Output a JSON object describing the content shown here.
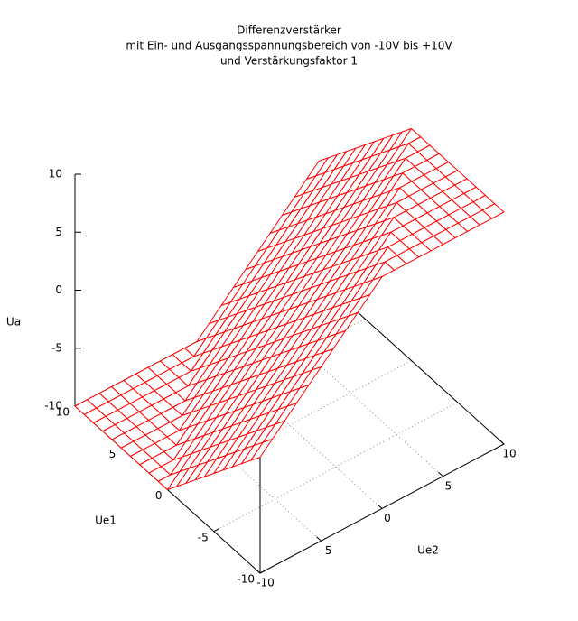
{
  "chart_data": {
    "type": "surface",
    "title": [
      "Differenzverstärker",
      "mit Ein- und Ausgangsspannungsbereich von -10V bis +10V",
      "und Verstärkungsfaktor 1"
    ],
    "xlabel": "Ue1",
    "ylabel": "Ue2",
    "zlabel": "Ua",
    "color": "#ff0000",
    "grid": true,
    "xlim": [
      -10,
      10
    ],
    "ylim": [
      -10,
      10
    ],
    "zlim": [
      -10,
      10
    ],
    "xticks": [
      -10,
      -5,
      0,
      5,
      10
    ],
    "yticks": [
      -10,
      -5,
      0,
      5,
      10
    ],
    "zticks": [
      -10,
      -5,
      0,
      5,
      10
    ],
    "x": [
      -10,
      -9,
      -8,
      -7,
      -6,
      -5,
      -4,
      -3,
      -2,
      -1,
      0,
      1,
      2,
      3,
      4,
      5,
      6,
      7,
      8,
      9,
      10
    ],
    "y": [
      -10,
      -9,
      -8,
      -7,
      -6,
      -5,
      -4,
      -3,
      -2,
      -1,
      0,
      1,
      2,
      3,
      4,
      5,
      6,
      7,
      8,
      9,
      10
    ],
    "z": [
      [
        0,
        1,
        2,
        3,
        4,
        5,
        6,
        7,
        8,
        9,
        10,
        10,
        10,
        10,
        10,
        10,
        10,
        10,
        10,
        10,
        10
      ],
      [
        -1,
        0,
        1,
        2,
        3,
        4,
        5,
        6,
        7,
        8,
        9,
        10,
        10,
        10,
        10,
        10,
        10,
        10,
        10,
        10,
        10
      ],
      [
        -2,
        -1,
        0,
        1,
        2,
        3,
        4,
        5,
        6,
        7,
        8,
        9,
        10,
        10,
        10,
        10,
        10,
        10,
        10,
        10,
        10
      ],
      [
        -3,
        -2,
        -1,
        0,
        1,
        2,
        3,
        4,
        5,
        6,
        7,
        8,
        9,
        10,
        10,
        10,
        10,
        10,
        10,
        10,
        10
      ],
      [
        -4,
        -3,
        -2,
        -1,
        0,
        1,
        2,
        3,
        4,
        5,
        6,
        7,
        8,
        9,
        10,
        10,
        10,
        10,
        10,
        10,
        10
      ],
      [
        -5,
        -4,
        -3,
        -2,
        -1,
        0,
        1,
        2,
        3,
        4,
        5,
        6,
        7,
        8,
        9,
        10,
        10,
        10,
        10,
        10,
        10
      ],
      [
        -6,
        -5,
        -4,
        -3,
        -2,
        -1,
        0,
        1,
        2,
        3,
        4,
        5,
        6,
        7,
        8,
        9,
        10,
        10,
        10,
        10,
        10
      ],
      [
        -7,
        -6,
        -5,
        -4,
        -3,
        -2,
        -1,
        0,
        1,
        2,
        3,
        4,
        5,
        6,
        7,
        8,
        9,
        10,
        10,
        10,
        10
      ],
      [
        -8,
        -7,
        -6,
        -5,
        -4,
        -3,
        -2,
        -1,
        0,
        1,
        2,
        3,
        4,
        5,
        6,
        7,
        8,
        9,
        10,
        10,
        10
      ],
      [
        -9,
        -8,
        -7,
        -6,
        -5,
        -4,
        -3,
        -2,
        -1,
        0,
        1,
        2,
        3,
        4,
        5,
        6,
        7,
        8,
        9,
        10,
        10
      ],
      [
        -10,
        -9,
        -8,
        -7,
        -6,
        -5,
        -4,
        -3,
        -2,
        -1,
        0,
        1,
        2,
        3,
        4,
        5,
        6,
        7,
        8,
        9,
        10
      ],
      [
        -10,
        -10,
        -9,
        -8,
        -7,
        -6,
        -5,
        -4,
        -3,
        -2,
        -1,
        0,
        1,
        2,
        3,
        4,
        5,
        6,
        7,
        8,
        9
      ],
      [
        -10,
        -10,
        -10,
        -9,
        -8,
        -7,
        -6,
        -5,
        -4,
        -3,
        -2,
        -1,
        0,
        1,
        2,
        3,
        4,
        5,
        6,
        7,
        8
      ],
      [
        -10,
        -10,
        -10,
        -10,
        -9,
        -8,
        -7,
        -6,
        -5,
        -4,
        -3,
        -2,
        -1,
        0,
        1,
        2,
        3,
        4,
        5,
        6,
        7
      ],
      [
        -10,
        -10,
        -10,
        -10,
        -10,
        -9,
        -8,
        -7,
        -6,
        -5,
        -4,
        -3,
        -2,
        -1,
        0,
        1,
        2,
        3,
        4,
        5,
        6
      ],
      [
        -10,
        -10,
        -10,
        -10,
        -10,
        -10,
        -9,
        -8,
        -7,
        -6,
        -5,
        -4,
        -3,
        -2,
        -1,
        0,
        1,
        2,
        3,
        4,
        5
      ],
      [
        -10,
        -10,
        -10,
        -10,
        -10,
        -10,
        -10,
        -9,
        -8,
        -7,
        -6,
        -5,
        -4,
        -3,
        -2,
        -1,
        0,
        1,
        2,
        3,
        4
      ],
      [
        -10,
        -10,
        -10,
        -10,
        -10,
        -10,
        -10,
        -10,
        -9,
        -8,
        -7,
        -6,
        -5,
        -4,
        -3,
        -2,
        -1,
        0,
        1,
        2,
        3
      ],
      [
        -10,
        -10,
        -10,
        -10,
        -10,
        -10,
        -10,
        -10,
        -10,
        -9,
        -8,
        -7,
        -6,
        -5,
        -4,
        -3,
        -2,
        -1,
        0,
        1,
        2
      ],
      [
        -10,
        -10,
        -10,
        -10,
        -10,
        -10,
        -10,
        -10,
        -10,
        -10,
        -9,
        -8,
        -7,
        -6,
        -5,
        -4,
        -3,
        -2,
        -1,
        0,
        1
      ],
      [
        -10,
        -10,
        -10,
        -10,
        -10,
        -10,
        -10,
        -10,
        -10,
        -10,
        -10,
        -9,
        -8,
        -7,
        -6,
        -5,
        -4,
        -3,
        -2,
        -1,
        0
      ]
    ]
  }
}
